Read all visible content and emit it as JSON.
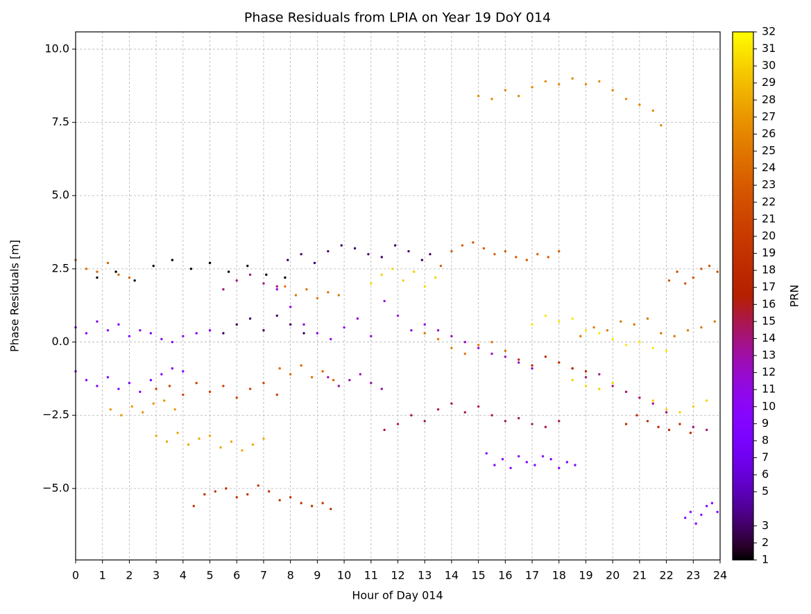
{
  "chart_data": {
    "type": "scatter",
    "title": "Phase Residuals from LPIA on Year 19 DoY 014",
    "x_label": "Hour of Day 014",
    "y_label": "Phase Residuals [m]",
    "colorbar_label": "PRN",
    "colormap": "gnuplot",
    "clim": [
      1,
      32
    ],
    "cticks": [
      1,
      2,
      3,
      5,
      6,
      7,
      8,
      9,
      10,
      11,
      12,
      13,
      14,
      15,
      16,
      17,
      18,
      19,
      20,
      21,
      22,
      23,
      24,
      25,
      26,
      27,
      28,
      29,
      30,
      31,
      32
    ],
    "grid": true,
    "xlim": [
      0,
      24
    ],
    "xticks": [
      0,
      1,
      2,
      3,
      4,
      5,
      6,
      7,
      8,
      9,
      10,
      11,
      12,
      13,
      14,
      15,
      16,
      17,
      18,
      19,
      20,
      21,
      22,
      23,
      24
    ],
    "ylim": [
      -7.44,
      10.59
    ],
    "yticks": [
      {
        "value": -5,
        "label": "−5.0"
      },
      {
        "value": -2.5,
        "label": "−2.5"
      },
      {
        "value": 0,
        "label": "0.0"
      },
      {
        "value": 2.5,
        "label": "2.5"
      },
      {
        "value": 5,
        "label": "5.0"
      },
      {
        "value": 7.5,
        "label": "7.5"
      },
      {
        "value": 10,
        "label": "10.0"
      }
    ],
    "series": [
      {
        "c": 1,
        "x": [
          0.8,
          1.5,
          2.2,
          2.9,
          3.6,
          4.3,
          5.0,
          5.7,
          6.4,
          7.1,
          7.8
        ],
        "values": [
          2.2,
          2.4,
          2.1,
          2.6,
          2.8,
          2.5,
          2.7,
          2.4,
          2.6,
          2.3,
          2.2
        ]
      },
      {
        "c": 3,
        "x": [
          7.9,
          8.4,
          8.9,
          9.4,
          9.9,
          10.4,
          10.9,
          11.4,
          11.9,
          12.4,
          12.9,
          13.2
        ],
        "values": [
          2.8,
          3.0,
          2.7,
          3.1,
          3.3,
          3.2,
          3.0,
          2.9,
          3.3,
          3.1,
          2.8,
          3.0
        ]
      },
      {
        "c": 3,
        "x": [
          5.5,
          6.0,
          6.5,
          7.0,
          7.5,
          8.0,
          8.5
        ],
        "values": [
          0.3,
          0.6,
          0.8,
          0.4,
          0.9,
          0.6,
          0.3
        ]
      },
      {
        "c": 26,
        "x": [
          15.0,
          15.5,
          16.0,
          16.5,
          17.0,
          17.5,
          18.0,
          18.5,
          19.0,
          19.5,
          20.0,
          20.5,
          21.0,
          21.5,
          21.8
        ],
        "values": [
          8.4,
          8.3,
          8.6,
          8.4,
          8.7,
          8.9,
          8.8,
          9.0,
          8.8,
          8.9,
          8.6,
          8.3,
          8.1,
          7.9,
          7.4
        ]
      },
      {
        "c": 23,
        "x": [
          13.6,
          14.0,
          14.4,
          14.8,
          15.2,
          15.6,
          16.0,
          16.4,
          16.8,
          17.2,
          17.6,
          18.0
        ],
        "values": [
          2.6,
          3.1,
          3.3,
          3.4,
          3.2,
          3.0,
          3.1,
          2.9,
          2.8,
          3.0,
          2.9,
          3.1
        ]
      },
      {
        "c": 22,
        "x": [
          22.1,
          22.4,
          22.7,
          23.0,
          23.3,
          23.6,
          23.9
        ],
        "values": [
          2.1,
          2.4,
          2.0,
          2.2,
          2.5,
          2.6,
          2.4
        ]
      },
      {
        "c": 19,
        "x": [
          4.4,
          4.8,
          5.2,
          5.6,
          6.0,
          6.4,
          6.8,
          7.2,
          7.6,
          8.0,
          8.4,
          8.8,
          9.2,
          9.5
        ],
        "values": [
          -5.6,
          -5.2,
          -5.1,
          -5.0,
          -5.3,
          -5.2,
          -4.9,
          -5.1,
          -5.4,
          -5.3,
          -5.5,
          -5.6,
          -5.5,
          -5.7
        ]
      },
      {
        "c": 28,
        "x": [
          3.0,
          3.4,
          3.8,
          4.2,
          4.6,
          5.0,
          5.4,
          5.8,
          6.2,
          6.6,
          7.0
        ],
        "values": [
          -3.2,
          -3.4,
          -3.1,
          -3.5,
          -3.3,
          -3.2,
          -3.6,
          -3.4,
          -3.7,
          -3.5,
          -3.3
        ]
      },
      {
        "c": 9,
        "x": [
          15.3,
          15.6,
          15.9,
          16.2,
          16.5,
          16.8,
          17.1,
          17.4,
          17.7,
          18.0,
          18.3,
          18.6
        ],
        "values": [
          -3.8,
          -4.2,
          -4.0,
          -4.3,
          -3.9,
          -4.1,
          -4.2,
          -3.9,
          -4.0,
          -4.3,
          -4.1,
          -4.2
        ]
      },
      {
        "c": 9,
        "x": [
          22.7,
          22.9,
          23.1,
          23.3,
          23.5,
          23.7,
          23.9
        ],
        "values": [
          -6.0,
          -5.8,
          -6.2,
          -5.9,
          -5.6,
          -5.5,
          -5.8
        ]
      },
      {
        "c": 15,
        "x": [
          11.5,
          12.0,
          12.5,
          13.0,
          13.5,
          14.0,
          14.5,
          15.0,
          15.5,
          16.0,
          16.5,
          17.0,
          17.5,
          18.0
        ],
        "values": [
          -3.0,
          -2.8,
          -2.5,
          -2.7,
          -2.3,
          -2.1,
          -2.4,
          -2.2,
          -2.5,
          -2.7,
          -2.6,
          -2.8,
          -2.9,
          -2.7
        ]
      },
      {
        "c": 31,
        "x": [
          17.0,
          17.5,
          18.0,
          18.5,
          19.0,
          19.5,
          20.0,
          20.5,
          21.0,
          21.5,
          22.0
        ],
        "values": [
          0.6,
          0.9,
          0.7,
          0.8,
          0.4,
          0.3,
          0.1,
          -0.1,
          0.0,
          -0.2,
          -0.3
        ]
      },
      {
        "c": 30,
        "x": [
          18.5,
          19.0,
          19.5,
          20.0,
          20.5,
          21.0,
          21.5,
          22.0,
          22.5,
          23.0,
          23.5
        ],
        "values": [
          -1.3,
          -1.5,
          -1.6,
          -1.4,
          -1.7,
          -1.9,
          -2.0,
          -2.3,
          -2.4,
          -2.2,
          -2.0
        ]
      },
      {
        "c": 25,
        "x": [
          18.8,
          19.3,
          19.8,
          20.3,
          20.8,
          21.3,
          21.8,
          22.3,
          22.8,
          23.3,
          23.8
        ],
        "values": [
          0.2,
          0.5,
          0.4,
          0.7,
          0.6,
          0.8,
          0.3,
          0.2,
          0.4,
          0.5,
          0.7
        ]
      },
      {
        "c": 18,
        "x": [
          20.5,
          20.9,
          21.3,
          21.7,
          22.1,
          22.5,
          22.9
        ],
        "values": [
          -2.8,
          -2.5,
          -2.7,
          -2.9,
          -3.0,
          -2.8,
          -3.1
        ]
      },
      {
        "c": 14,
        "x": [
          18.5,
          19.0,
          19.5,
          20.0,
          20.5,
          21.0,
          21.5,
          22.0,
          23.0,
          23.5
        ],
        "values": [
          -0.9,
          -1.2,
          -1.1,
          -1.5,
          -1.7,
          -1.9,
          -2.1,
          -2.4,
          -2.9,
          -3.0
        ]
      },
      {
        "c": 10,
        "x": [
          0.0,
          0.4,
          0.8,
          1.2,
          1.6,
          2.0,
          2.4,
          2.8,
          3.2,
          3.6,
          4.0,
          4.5,
          5.0
        ],
        "values": [
          0.5,
          0.3,
          0.7,
          0.4,
          0.6,
          0.2,
          0.4,
          0.3,
          0.1,
          0.0,
          0.2,
          0.3,
          0.4
        ]
      },
      {
        "c": 9,
        "x": [
          0.0,
          0.4,
          0.8,
          1.2,
          1.6,
          2.0,
          2.4,
          2.8,
          3.2,
          3.6,
          4.0
        ],
        "values": [
          -1.0,
          -1.3,
          -1.5,
          -1.2,
          -1.6,
          -1.4,
          -1.7,
          -1.3,
          -1.1,
          -0.9,
          -1.0
        ]
      },
      {
        "c": 21,
        "x": [
          3.0,
          3.5,
          4.0,
          4.5,
          5.0,
          5.5,
          6.0,
          6.5,
          7.0,
          7.5
        ],
        "values": [
          -1.6,
          -1.5,
          -1.8,
          -1.4,
          -1.7,
          -1.5,
          -1.9,
          -1.6,
          -1.4,
          -1.8
        ]
      },
      {
        "c": 24,
        "x": [
          0.0,
          0.4,
          0.8,
          1.2,
          1.6,
          2.0
        ],
        "values": [
          2.8,
          2.5,
          2.4,
          2.7,
          2.3,
          2.2
        ]
      },
      {
        "c": 27,
        "x": [
          1.3,
          1.7,
          2.1,
          2.5,
          2.9,
          3.3,
          3.7
        ],
        "values": [
          -2.3,
          -2.5,
          -2.2,
          -2.4,
          -2.1,
          -2.0,
          -2.3
        ]
      },
      {
        "c": 11,
        "x": [
          7.5,
          8.0,
          8.5,
          9.0,
          9.5,
          10.0,
          10.5,
          11.0,
          11.5,
          12.0,
          12.5,
          13.0
        ],
        "values": [
          1.8,
          1.2,
          0.6,
          0.3,
          0.1,
          0.5,
          0.8,
          0.2,
          1.4,
          0.9,
          0.4,
          0.6
        ]
      },
      {
        "c": 30,
        "x": [
          11.0,
          11.4,
          11.8,
          12.2,
          12.6,
          13.0,
          13.4
        ],
        "values": [
          2.0,
          2.3,
          2.5,
          2.1,
          2.4,
          1.9,
          2.2
        ]
      },
      {
        "c": 25,
        "x": [
          7.8,
          8.2,
          8.6,
          9.0,
          9.4,
          9.8
        ],
        "values": [
          1.9,
          1.6,
          1.8,
          1.5,
          1.7,
          1.6
        ]
      },
      {
        "c": 24,
        "x": [
          7.6,
          8.0,
          8.4,
          8.8,
          9.2,
          9.6
        ],
        "values": [
          -0.9,
          -1.1,
          -0.8,
          -1.2,
          -1.0,
          -1.3
        ]
      },
      {
        "c": 13,
        "x": [
          9.4,
          9.8,
          10.2,
          10.6,
          11.0,
          11.4
        ],
        "values": [
          -1.2,
          -1.5,
          -1.3,
          -1.1,
          -1.4,
          -1.6
        ]
      },
      {
        "c": 12,
        "x": [
          13.5,
          14.0,
          14.5,
          15.0,
          15.5,
          16.0,
          16.5,
          17.0
        ],
        "values": [
          0.4,
          0.2,
          0.0,
          -0.2,
          -0.4,
          -0.5,
          -0.7,
          -0.9
        ]
      },
      {
        "c": 25,
        "x": [
          13.0,
          13.5,
          14.0,
          14.5,
          15.0,
          15.5,
          16.0
        ],
        "values": [
          0.3,
          0.1,
          -0.2,
          -0.4,
          -0.1,
          0.0,
          -0.3
        ]
      },
      {
        "c": 18,
        "x": [
          16.5,
          17.0,
          17.5,
          18.0,
          18.5,
          19.0
        ],
        "values": [
          -0.6,
          -0.8,
          -0.5,
          -0.7,
          -0.9,
          -1.0
        ]
      },
      {
        "c": 14,
        "x": [
          5.5,
          6.0,
          6.5,
          7.0,
          7.5
        ],
        "values": [
          1.8,
          2.1,
          2.3,
          2.0,
          1.9
        ]
      }
    ]
  }
}
